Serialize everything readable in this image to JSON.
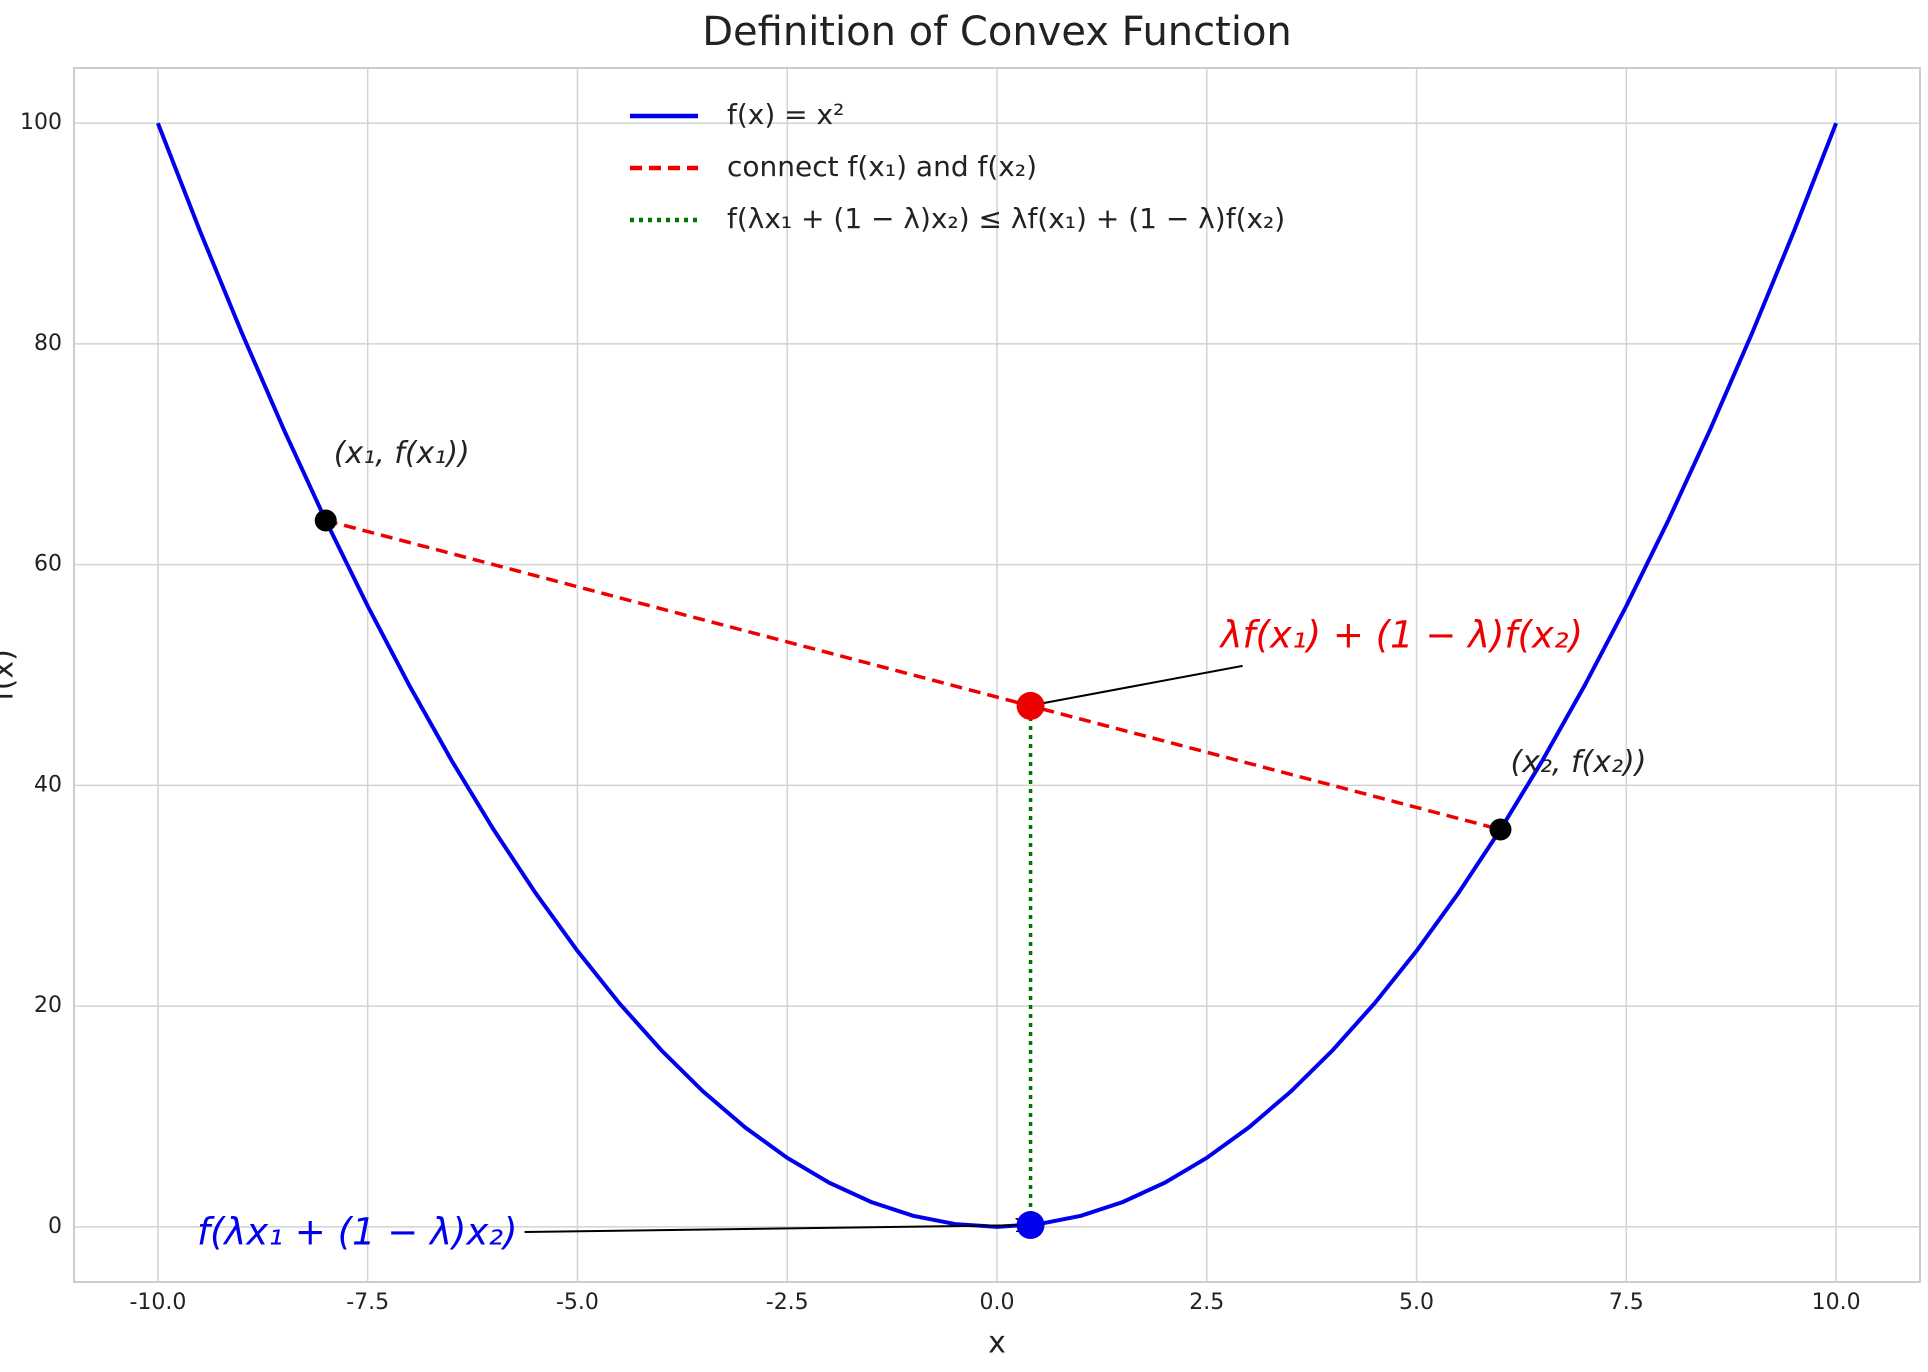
{
  "chart_data": {
    "type": "line",
    "title": "Definition of Convex Function",
    "xlabel": "x",
    "ylabel": "f(x)",
    "xlim": [
      -11,
      11
    ],
    "ylim": [
      -5,
      105
    ],
    "xticks": [
      {
        "value": -10,
        "label": "-10.0"
      },
      -7.5,
      {
        "value": -5,
        "label": "-5.0"
      },
      -2.5,
      {
        "value": 0,
        "label": "0.0"
      },
      2.5,
      {
        "value": 5,
        "label": "5.0"
      },
      7.5,
      {
        "value": 10,
        "label": "10.0"
      }
    ],
    "yticks": [
      0,
      20,
      40,
      60,
      80,
      100
    ],
    "grid": true,
    "legend": "upper center",
    "series": [
      {
        "name": "f(x) = x²",
        "color": "#0000ee",
        "linestyle": "solid",
        "x": [
          -10,
          -9.5,
          -9,
          -8.5,
          -8,
          -7.5,
          -7,
          -6.5,
          -6,
          -5.5,
          -5,
          -4.5,
          -4,
          -3.5,
          -3,
          -2.5,
          -2,
          -1.5,
          -1,
          -0.5,
          0,
          0.5,
          1,
          1.5,
          2,
          2.5,
          3,
          3.5,
          4,
          4.5,
          5,
          5.5,
          6,
          6.5,
          7,
          7.5,
          8,
          8.5,
          9,
          9.5,
          10
        ],
        "values": [
          100,
          90.25,
          81,
          72.25,
          64,
          56.25,
          49,
          42.25,
          36,
          30.25,
          25,
          20.25,
          16,
          12.25,
          9,
          6.25,
          4,
          2.25,
          1,
          0.25,
          0,
          0.25,
          1,
          2.25,
          4,
          6.25,
          9,
          12.25,
          16,
          20.25,
          25,
          30.25,
          36,
          42.25,
          49,
          56.25,
          64,
          72.25,
          81,
          90.25,
          100
        ]
      },
      {
        "name": "connect f(x₁) and f(x₂)",
        "color": "#ee0000",
        "linestyle": "dashed",
        "x": [
          -8,
          6
        ],
        "values": [
          64,
          36
        ]
      },
      {
        "name": "f(λx₁ + (1 − λ)x₂) ≤ λf(x₁) + (1 − λ)f(x₂)",
        "color": "#007700",
        "linestyle": "dotted",
        "x": [
          0.4,
          0.4
        ],
        "values": [
          0.16,
          47.2
        ]
      }
    ],
    "points": [
      {
        "color": "#000000",
        "x": [
          -8,
          6
        ],
        "values": [
          64,
          36
        ]
      },
      {
        "color": "#ee0000",
        "x": [
          0.4
        ],
        "values": [
          47.2
        ]
      },
      {
        "color": "#0000ee",
        "x": [
          0.4
        ],
        "values": [
          0.16
        ]
      }
    ],
    "annotations": [
      {
        "text": "(x₁, f(x₁))",
        "color": "#222222",
        "xy": [
          -8,
          64
        ],
        "arrow": false
      },
      {
        "text": "(x₂, f(x₂))",
        "color": "#222222",
        "xy": [
          6,
          36
        ],
        "arrow": false
      },
      {
        "text": "λf(x₁) + (1 − λ)f(x₂)",
        "color": "#ee0000",
        "xy": [
          0.4,
          47.2
        ],
        "arrow": true
      },
      {
        "text": "f(λx₁ + (1 − λ)x₂)",
        "color": "#0000ee",
        "xy": [
          0.4,
          0.16
        ],
        "arrow": true
      }
    ]
  }
}
